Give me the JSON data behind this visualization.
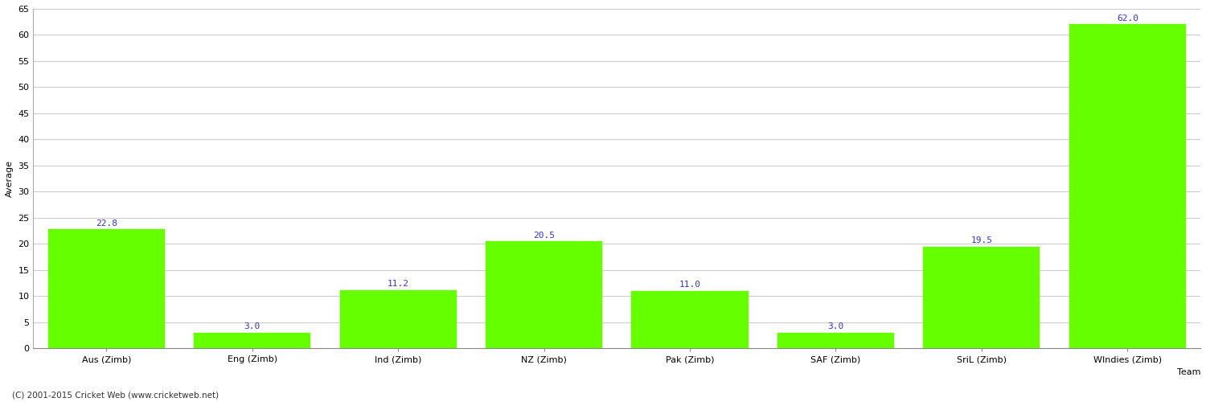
{
  "categories": [
    "Aus (Zimb)",
    "Eng (Zimb)",
    "Ind (Zimb)",
    "NZ (Zimb)",
    "Pak (Zimb)",
    "SAF (Zimb)",
    "SriL (Zimb)",
    "WIndies (Zimb)"
  ],
  "values": [
    22.8,
    3.0,
    11.2,
    20.5,
    11.0,
    3.0,
    19.5,
    62.0
  ],
  "bar_color": "#66ff00",
  "bar_edge_color": "#66ff00",
  "label_color": "#3333cc",
  "xlabel": "Team",
  "ylabel": "Average",
  "ylim": [
    0,
    65
  ],
  "yticks": [
    0,
    5,
    10,
    15,
    20,
    25,
    30,
    35,
    40,
    45,
    50,
    55,
    60,
    65
  ],
  "grid_color": "#cccccc",
  "background_color": "#ffffff",
  "footer": "(C) 2001-2015 Cricket Web (www.cricketweb.net)",
  "label_fontsize": 8,
  "axis_fontsize": 8,
  "bar_width": 0.8
}
